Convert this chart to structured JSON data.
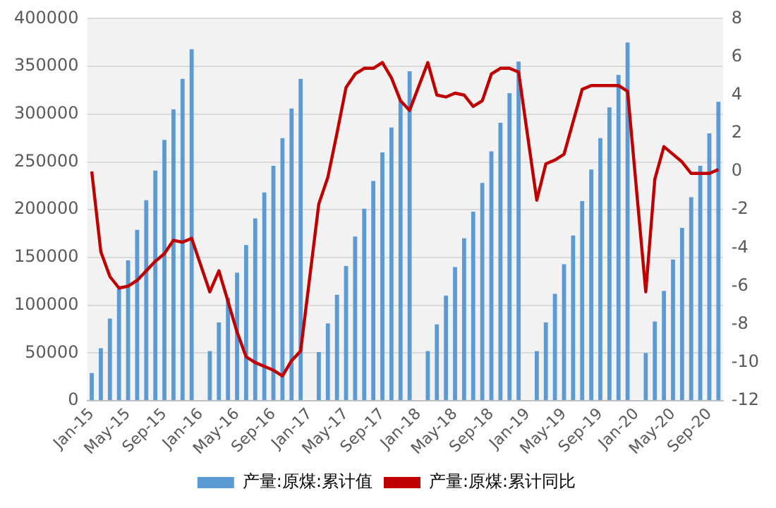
{
  "chart_data": {
    "type": "bar",
    "categories": [
      "Jan-15",
      null,
      null,
      null,
      "May-15",
      null,
      null,
      null,
      "Sep-15",
      null,
      null,
      null,
      "Jan-16",
      null,
      null,
      null,
      "May-16",
      null,
      null,
      null,
      "Sep-16",
      null,
      null,
      null,
      "Jan-17",
      null,
      null,
      null,
      "May-17",
      null,
      null,
      null,
      "Sep-17",
      null,
      null,
      null,
      "Jan-18",
      null,
      null,
      null,
      "May-18",
      null,
      null,
      null,
      "Sep-18",
      null,
      null,
      null,
      "Jan-19",
      null,
      null,
      null,
      "May-19",
      null,
      null,
      null,
      "Sep-19",
      null,
      null,
      null,
      "Jan-20",
      null,
      null,
      null,
      "May-20",
      null,
      null,
      null,
      "Sep-20",
      null
    ],
    "series": [
      {
        "name": "产量:原煤:累计值",
        "color": "#5b9bd5",
        "values": [
          29000,
          55000,
          86000,
          117000,
          147000,
          179000,
          210000,
          241000,
          273000,
          305000,
          337000,
          368000,
          null,
          52000,
          82000,
          108000,
          134000,
          163000,
          191000,
          218000,
          246000,
          275000,
          306000,
          337000,
          null,
          51000,
          81000,
          111000,
          141000,
          172000,
          201000,
          230000,
          260000,
          286000,
          314000,
          345000,
          null,
          52000,
          80000,
          110000,
          140000,
          170000,
          198000,
          228000,
          261000,
          291000,
          322000,
          355000,
          null,
          52000,
          82000,
          112000,
          143000,
          173000,
          209000,
          242000,
          275000,
          307000,
          341000,
          375000,
          null,
          50000,
          83000,
          115000,
          148000,
          181000,
          213000,
          246000,
          280000,
          313000
        ]
      },
      {
        "name": "产量:原煤:累计同比",
        "type": "line",
        "axis": "y2",
        "color": "#c00000",
        "values": [
          0.0,
          -4.2,
          -5.5,
          -6.1,
          -6.0,
          -5.7,
          -5.2,
          -4.7,
          -4.3,
          -3.6,
          -3.7,
          -3.5,
          null,
          -6.3,
          -5.2,
          -6.8,
          -8.4,
          -9.7,
          -10.0,
          -10.2,
          -10.4,
          -10.7,
          -9.9,
          -9.4,
          null,
          -1.7,
          -0.3,
          2.0,
          4.4,
          5.1,
          5.4,
          5.4,
          5.7,
          4.9,
          3.7,
          3.2,
          null,
          5.7,
          4.0,
          3.9,
          4.1,
          4.0,
          3.4,
          3.7,
          5.1,
          5.4,
          5.4,
          5.2,
          null,
          -1.5,
          0.4,
          0.6,
          0.9,
          2.6,
          4.3,
          4.5,
          4.5,
          4.5,
          4.5,
          4.2,
          null,
          -6.3,
          -0.4,
          1.3,
          0.9,
          0.5,
          -0.1,
          -0.1,
          -0.1,
          0.1
        ]
      }
    ],
    "ylim": [
      0,
      400000
    ],
    "yticks": [
      0,
      50000,
      100000,
      150000,
      200000,
      250000,
      300000,
      350000,
      400000
    ],
    "y2lim": [
      -12,
      8
    ],
    "y2ticks": [
      -12,
      -10,
      -8,
      -6,
      -4,
      -2,
      0,
      2,
      4,
      6,
      8
    ],
    "grid": "y",
    "legend": "bottom",
    "marker": "none"
  }
}
